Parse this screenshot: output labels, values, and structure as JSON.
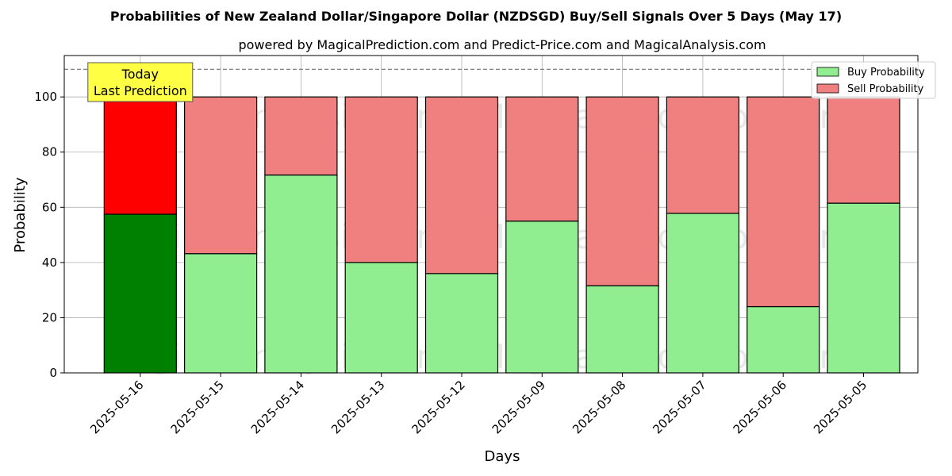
{
  "chart_data": {
    "type": "bar",
    "title": "Probabilities of New Zealand Dollar/Singapore Dollar (NZDSGD) Buy/Sell Signals Over 5 Days (May 17)",
    "subtitle": "powered by MagicalPrediction.com and Predict-Price.com and MagicalAnalysis.com",
    "xlabel": "Days",
    "ylabel": "Probability",
    "ylim": [
      0,
      115
    ],
    "yticks": [
      0,
      20,
      40,
      60,
      80,
      100
    ],
    "reference_line": 110,
    "grid": true,
    "stacked": true,
    "categories": [
      "2025-05-16",
      "2025-05-15",
      "2025-05-14",
      "2025-05-13",
      "2025-05-12",
      "2025-05-09",
      "2025-05-08",
      "2025-05-07",
      "2025-05-06",
      "2025-05-05"
    ],
    "series": [
      {
        "name": "Buy Probability",
        "color": "#90ee90",
        "highlight_color": "#008000",
        "values": [
          57.5,
          43.2,
          71.7,
          40.0,
          36.0,
          55.0,
          31.6,
          57.8,
          24.0,
          61.5
        ]
      },
      {
        "name": "Sell Probability",
        "color": "#f08080",
        "highlight_color": "#ff0000",
        "values": [
          42.5,
          56.8,
          28.3,
          60.0,
          64.0,
          45.0,
          68.4,
          42.2,
          76.0,
          38.5
        ]
      }
    ],
    "highlight_index": 0,
    "annotation": {
      "lines": [
        "Today",
        "Last Prediction"
      ],
      "bg_color": "#ffff44"
    },
    "legend_position": "top-right",
    "watermarks": [
      "MagicalAnalysis.com",
      "MagicalPrediction.com"
    ]
  }
}
